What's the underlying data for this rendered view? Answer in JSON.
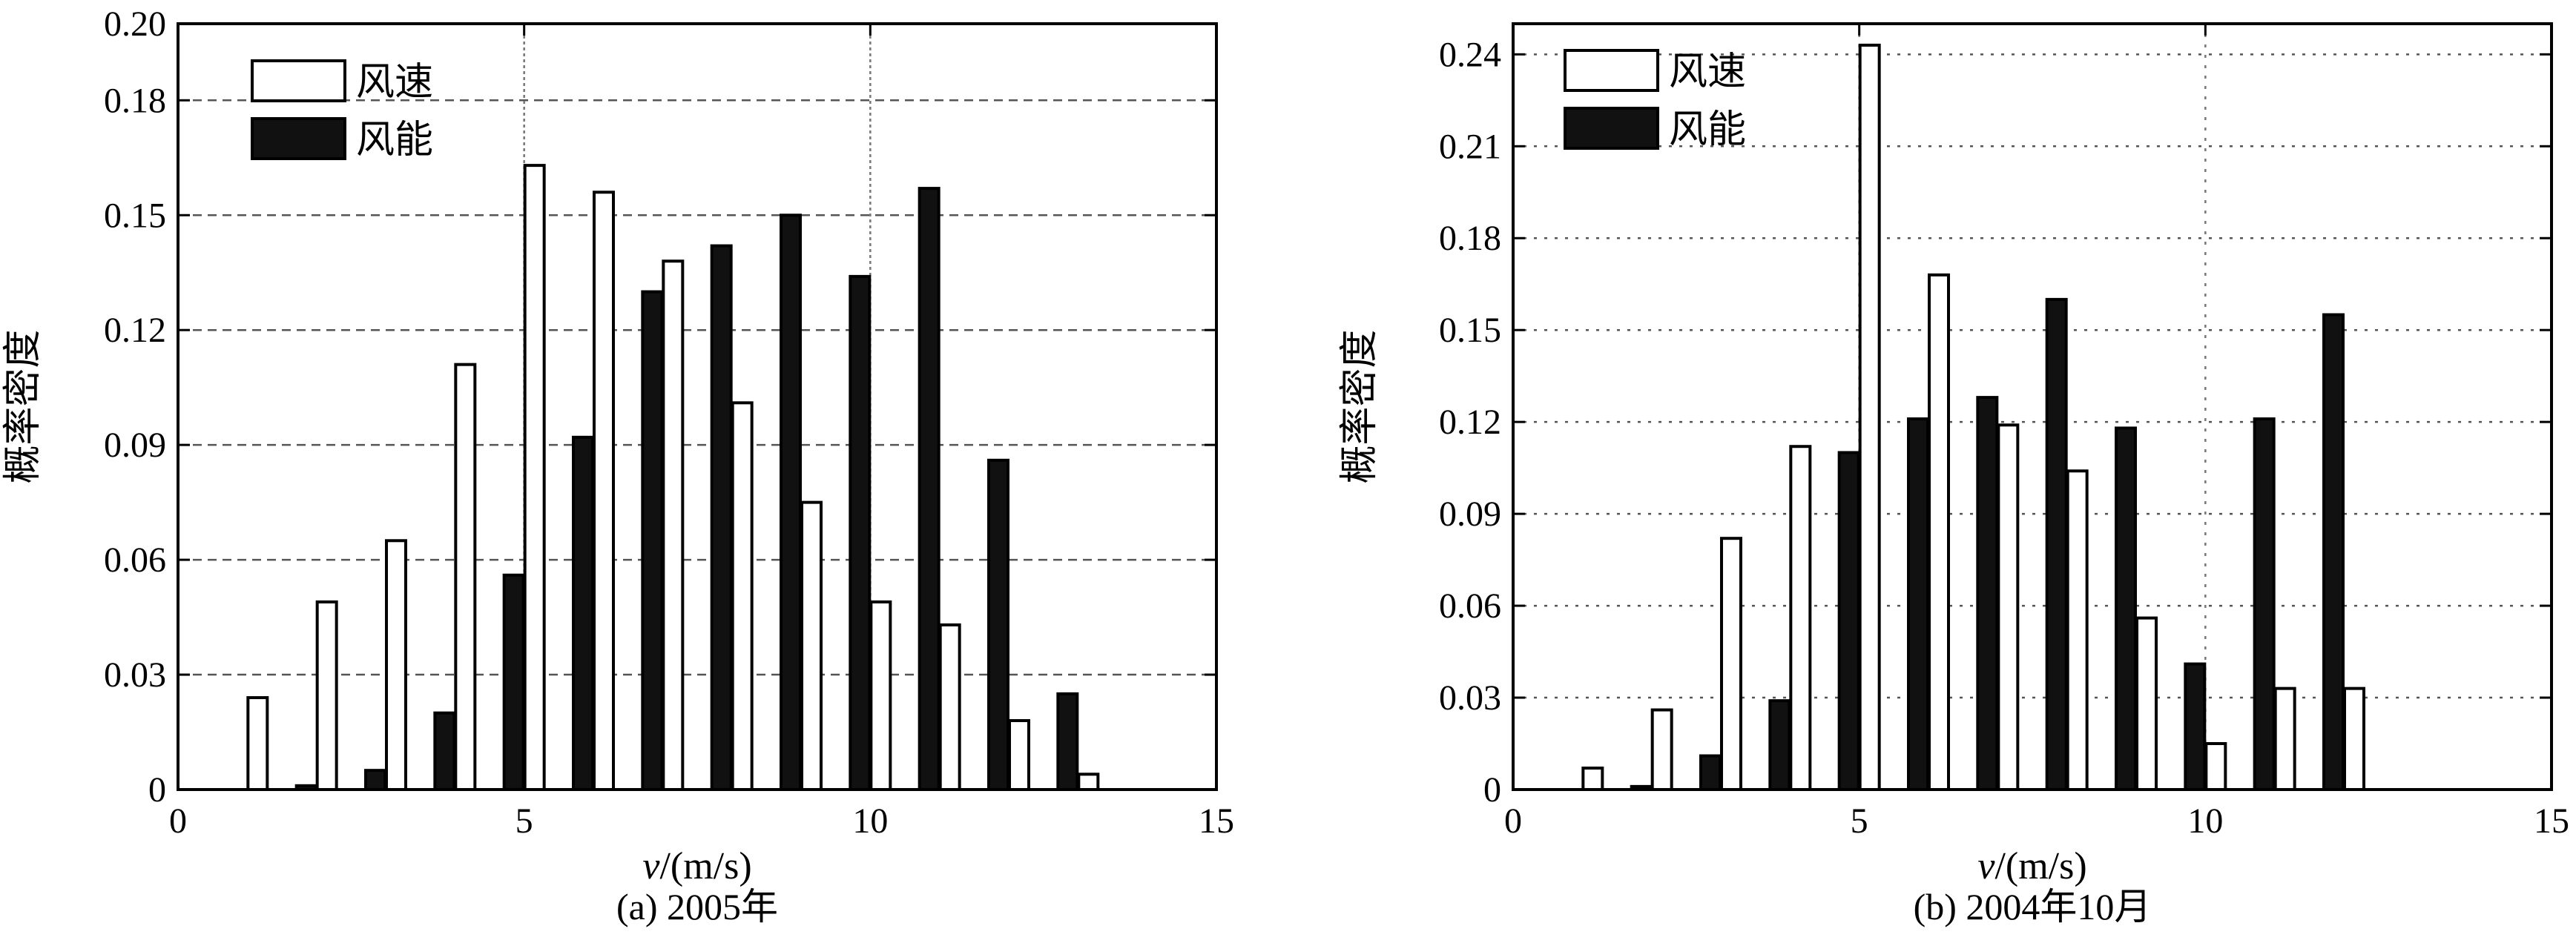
{
  "chart_data": [
    {
      "type": "bar",
      "caption": "(a) 2005年",
      "xlabel_var": "v",
      "xlabel_unit": "/(m/s)",
      "ylabel": "概率密度",
      "xlim": [
        0,
        15
      ],
      "ylim": [
        0,
        0.2
      ],
      "xticks": [
        0,
        5,
        10,
        15
      ],
      "yticks": [
        0,
        0.03,
        0.06,
        0.09,
        0.12,
        0.15,
        0.18,
        0.2
      ],
      "ytick_labels": [
        "0",
        "0.03",
        "0.06",
        "0.09",
        "0.12",
        "0.15",
        "0.18",
        "0.20"
      ],
      "grid": "vertical gridlines at x=5 and x=10, dashed horizontal at y ticks",
      "legend": "top-left",
      "x": [
        1,
        2,
        3,
        4,
        5,
        6,
        7,
        8,
        9,
        10,
        11,
        12,
        13
      ],
      "series": [
        {
          "name": "风速",
          "fill": "#ffffff",
          "values": [
            0.024,
            0.049,
            0.065,
            0.111,
            0.163,
            0.156,
            0.138,
            0.101,
            0.075,
            0.049,
            0.043,
            0.018,
            0.004
          ]
        },
        {
          "name": "风能",
          "fill": "#111111",
          "values": [
            0.0,
            0.001,
            0.005,
            0.02,
            0.056,
            0.092,
            0.13,
            0.142,
            0.15,
            0.134,
            0.157,
            0.086,
            0.025
          ]
        }
      ]
    },
    {
      "type": "bar",
      "caption": "(b) 2004年10月",
      "xlabel_var": "v",
      "xlabel_unit": "/(m/s)",
      "ylabel": "概率密度",
      "xlim": [
        0,
        15
      ],
      "ylim": [
        0,
        0.25
      ],
      "xticks": [
        0,
        5,
        10,
        15
      ],
      "yticks": [
        0,
        0.03,
        0.06,
        0.09,
        0.12,
        0.15,
        0.18,
        0.21,
        0.24
      ],
      "ytick_labels": [
        "0",
        "0.03",
        "0.06",
        "0.09",
        "0.12",
        "0.15",
        "0.18",
        "0.21",
        "0.24"
      ],
      "grid": "dotted vertical at x=5 and x=10, dotted horizontal at y ticks",
      "legend": "top-left",
      "x": [
        1,
        2,
        3,
        4,
        5,
        6,
        7,
        8,
        9,
        10,
        11,
        12,
        13
      ],
      "series": [
        {
          "name": "风速",
          "fill": "#ffffff",
          "values": [
            0.007,
            0.026,
            0.082,
            0.112,
            0.243,
            0.168,
            0.119,
            0.104,
            0.056,
            0.015,
            0.033,
            0.033,
            0.0
          ]
        },
        {
          "name": "风能",
          "fill": "#111111",
          "values": [
            0.0,
            0.001,
            0.011,
            0.029,
            0.11,
            0.121,
            0.128,
            0.16,
            0.118,
            0.041,
            0.121,
            0.155,
            0.0
          ]
        }
      ]
    }
  ]
}
